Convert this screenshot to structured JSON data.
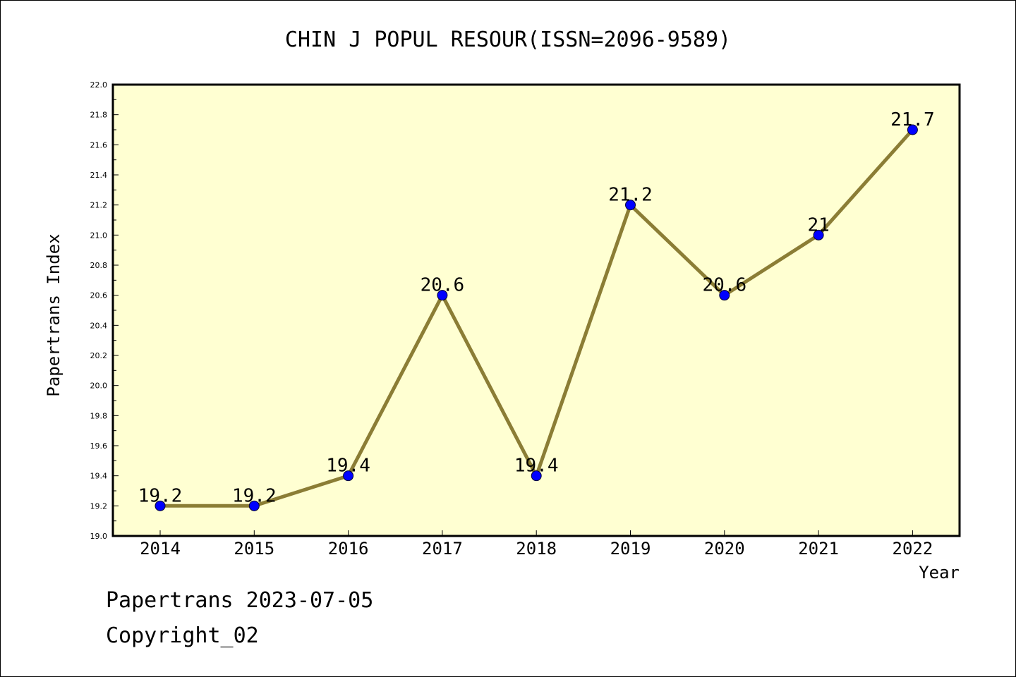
{
  "chart_data": {
    "type": "line",
    "title": "CHIN J POPUL RESOUR(ISSN=2096-9589)",
    "xlabel": "Year",
    "ylabel": "Papertrans Index",
    "categories": [
      "2014",
      "2015",
      "2016",
      "2017",
      "2018",
      "2019",
      "2020",
      "2021",
      "2022"
    ],
    "series": [
      {
        "values": [
          19.2,
          19.2,
          19.4,
          20.6,
          19.4,
          21.2,
          20.6,
          21.0,
          21.7
        ],
        "labels": [
          "19.2",
          "19.2",
          "19.4",
          "20.6",
          "19.4",
          "21.2",
          "20.6",
          "21",
          "21.7"
        ]
      }
    ],
    "ylim": [
      19.0,
      22.0
    ],
    "yticks": [
      "19.0",
      "19.2",
      "19.4",
      "19.6",
      "19.8",
      "20.0",
      "20.2",
      "20.4",
      "20.6",
      "20.8",
      "21.0",
      "21.2",
      "21.4",
      "21.6",
      "21.8",
      "22.0"
    ],
    "grid": false,
    "colors": {
      "plot_background": "#ffffd2",
      "line": "#8b7d35",
      "marker": "#0000ff"
    }
  },
  "footer": {
    "line1": "Papertrans 2023-07-05",
    "line2": "Copyright_02"
  }
}
